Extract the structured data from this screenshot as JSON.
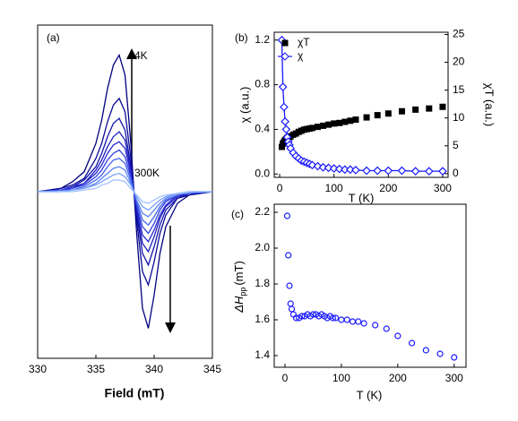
{
  "chart_data": [
    {
      "type": "line",
      "panel_label": "(a)",
      "x_label": "Field (mT)",
      "annotations": [
        "4K",
        "300K"
      ],
      "xlim": [
        330,
        345
      ],
      "xticks": [
        330,
        335,
        340,
        345
      ],
      "ylim": [
        -1,
        1
      ],
      "x": [
        330,
        332,
        333,
        334,
        335,
        335.5,
        336,
        336.5,
        337,
        337.5,
        338,
        338.5,
        339,
        339.5,
        340,
        340.5,
        341,
        342,
        343,
        345
      ],
      "series": [
        {
          "color": "#00007f",
          "values": [
            0,
            0.02,
            0.06,
            0.12,
            0.29,
            0.43,
            0.62,
            0.76,
            0.82,
            0.7,
            0.29,
            -0.25,
            -0.7,
            -0.82,
            -0.62,
            -0.37,
            -0.21,
            -0.07,
            -0.02,
            0
          ]
        },
        {
          "color": "#0a0a96",
          "values": [
            0,
            0.02,
            0.04,
            0.08,
            0.2,
            0.29,
            0.42,
            0.52,
            0.56,
            0.48,
            0.2,
            -0.17,
            -0.48,
            -0.56,
            -0.42,
            -0.25,
            -0.14,
            -0.04,
            -0.02,
            0
          ]
        },
        {
          "color": "#1414aa",
          "values": [
            0,
            0.01,
            0.03,
            0.07,
            0.15,
            0.23,
            0.33,
            0.41,
            0.44,
            0.37,
            0.15,
            -0.13,
            -0.37,
            -0.44,
            -0.33,
            -0.2,
            -0.11,
            -0.04,
            -0.01,
            0
          ]
        },
        {
          "color": "#1e1ebe",
          "values": [
            0,
            0.01,
            0.03,
            0.05,
            0.13,
            0.19,
            0.27,
            0.33,
            0.36,
            0.31,
            0.13,
            -0.11,
            -0.31,
            -0.36,
            -0.27,
            -0.16,
            -0.09,
            -0.03,
            -0.01,
            0
          ]
        },
        {
          "color": "#2828d2",
          "values": [
            0,
            0.01,
            0.02,
            0.05,
            0.11,
            0.16,
            0.23,
            0.28,
            0.3,
            0.26,
            0.11,
            -0.09,
            -0.26,
            -0.3,
            -0.23,
            -0.14,
            -0.08,
            -0.02,
            -0.01,
            0
          ]
        },
        {
          "color": "#3040e0",
          "values": [
            0,
            0.01,
            0.02,
            0.04,
            0.09,
            0.13,
            0.19,
            0.23,
            0.25,
            0.21,
            0.09,
            -0.08,
            -0.21,
            -0.25,
            -0.19,
            -0.11,
            -0.06,
            -0.02,
            -0.01,
            0
          ]
        },
        {
          "color": "#4060ea",
          "values": [
            0,
            0.01,
            0.01,
            0.03,
            0.07,
            0.1,
            0.15,
            0.19,
            0.2,
            0.17,
            0.07,
            -0.06,
            -0.17,
            -0.2,
            -0.15,
            -0.09,
            -0.05,
            -0.02,
            -0.01,
            0
          ]
        },
        {
          "color": "#5a80f2",
          "values": [
            0,
            0,
            0.01,
            0.02,
            0.05,
            0.08,
            0.11,
            0.14,
            0.15,
            0.13,
            0.05,
            -0.05,
            -0.13,
            -0.15,
            -0.11,
            -0.07,
            -0.04,
            -0.01,
            0,
            0
          ]
        },
        {
          "color": "#78a0f8",
          "values": [
            0,
            0,
            0.01,
            0.02,
            0.04,
            0.06,
            0.08,
            0.1,
            0.11,
            0.09,
            0.04,
            -0.03,
            -0.09,
            -0.11,
            -0.08,
            -0.05,
            -0.03,
            -0.01,
            0,
            0
          ]
        },
        {
          "color": "#a0c0ff",
          "values": [
            0,
            0,
            0,
            0.01,
            0.02,
            0.04,
            0.05,
            0.07,
            0.07,
            0.06,
            0.02,
            -0.02,
            -0.06,
            -0.07,
            -0.05,
            -0.03,
            -0.02,
            -0.01,
            0,
            0
          ]
        }
      ]
    },
    {
      "type": "scatter",
      "panel_label": "(b)",
      "x_label": "T (K)",
      "y_label": "χ (a.u.)",
      "y2_label": "χT (a.u.)",
      "xlim": [
        -10,
        310
      ],
      "xticks": [
        0,
        100,
        200,
        300
      ],
      "ylim": [
        -0.03,
        1.27
      ],
      "yticks": [
        {
          "value": 0,
          "label": "0.0"
        },
        0.4,
        0.8,
        1.2
      ],
      "y2lim": [
        -0.67,
        25.4
      ],
      "y2ticks": [
        0,
        5,
        10,
        15,
        20,
        25
      ],
      "legend": "upper left",
      "x": [
        4,
        6,
        8,
        10,
        12,
        14,
        16,
        18,
        20,
        25,
        30,
        35,
        40,
        45,
        50,
        55,
        60,
        70,
        80,
        90,
        100,
        110,
        120,
        130,
        140,
        160,
        180,
        200,
        225,
        250,
        275,
        300
      ],
      "series": [
        {
          "name": "χT",
          "color": "#000000",
          "marker": "square",
          "axis": "y2",
          "values": [
            4.8,
            5.4,
            5.7,
            6.0,
            6.2,
            6.4,
            6.5,
            6.6,
            6.7,
            7.0,
            7.2,
            7.5,
            7.7,
            7.9,
            8.0,
            8.1,
            8.2,
            8.4,
            8.6,
            8.8,
            9.0,
            9.1,
            9.3,
            9.5,
            9.7,
            10.1,
            10.5,
            10.8,
            11.2,
            11.5,
            11.7,
            12.0
          ]
        },
        {
          "name": "χ",
          "color": "#1a1aff",
          "marker": "diamond",
          "line": true,
          "values": [
            1.2,
            0.78,
            0.6,
            0.47,
            0.4,
            0.33,
            0.29,
            0.26,
            0.23,
            0.19,
            0.16,
            0.14,
            0.12,
            0.11,
            0.1,
            0.09,
            0.08,
            0.07,
            0.06,
            0.055,
            0.05,
            0.045,
            0.04,
            0.04,
            0.035,
            0.03,
            0.03,
            0.03,
            0.03,
            0.025,
            0.025,
            0.025
          ]
        }
      ]
    },
    {
      "type": "scatter",
      "panel_label": "(c)",
      "x_label": "T (K)",
      "y_label": {
        "main": "ΔH",
        "sub": "pp",
        "unit": "(mT)"
      },
      "xlim": [
        -19,
        321
      ],
      "xticks": [
        0,
        100,
        200,
        300
      ],
      "ylim": [
        1.335,
        2.245
      ],
      "yticks": [
        1.4,
        1.6,
        1.8,
        {
          "value": 2,
          "label": "2.0"
        },
        2.2
      ],
      "x": [
        4,
        6,
        8,
        10,
        12,
        15,
        20,
        25,
        30,
        35,
        40,
        45,
        50,
        55,
        60,
        65,
        70,
        75,
        80,
        85,
        90,
        100,
        110,
        120,
        130,
        140,
        160,
        180,
        200,
        225,
        250,
        275,
        300
      ],
      "series": [
        {
          "color": "#1a1aff",
          "marker": "circle",
          "values": [
            2.18,
            1.96,
            1.79,
            1.69,
            1.66,
            1.63,
            1.61,
            1.61,
            1.62,
            1.62,
            1.63,
            1.62,
            1.63,
            1.63,
            1.62,
            1.63,
            1.62,
            1.61,
            1.62,
            1.61,
            1.61,
            1.6,
            1.6,
            1.59,
            1.59,
            1.58,
            1.57,
            1.55,
            1.51,
            1.47,
            1.43,
            1.41,
            1.39
          ]
        }
      ]
    }
  ]
}
